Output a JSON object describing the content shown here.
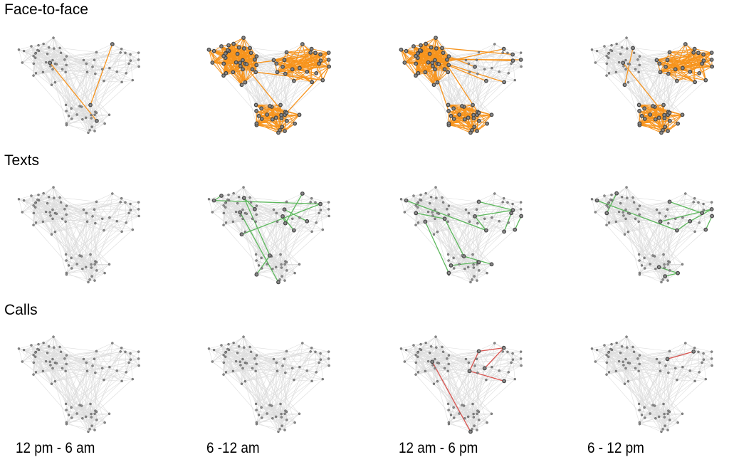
{
  "rows": [
    {
      "title": "Face-to-face",
      "edge_color": "#f7941d"
    },
    {
      "title": "Texts",
      "edge_color": "#5cb85c"
    },
    {
      "title": "Calls",
      "edge_color": "#d9534f"
    }
  ],
  "columns": [
    "12 pm  - 6 am",
    "6 -12 am",
    "12 am - 6 pm",
    "6 - 12 pm"
  ],
  "colors": {
    "background_edge": "#dddddd",
    "node": "#8a8a8a",
    "node_stroke": "#444444"
  },
  "panels": [
    [
      {
        "dense_clusters": [],
        "pairs": [
          [
            30,
            76
          ],
          [
            52,
            64
          ]
        ]
      },
      {
        "dense_clusters": [
          "A",
          "B",
          "C"
        ],
        "pairs": [
          [
            3,
            40
          ],
          [
            20,
            61
          ],
          [
            55,
            44
          ],
          [
            58,
            70
          ],
          [
            10,
            36
          ],
          [
            36,
            58
          ]
        ]
      },
      {
        "dense_clusters": [
          "A",
          "C"
        ],
        "pairs": [
          [
            5,
            40
          ],
          [
            12,
            45
          ],
          [
            20,
            50
          ],
          [
            28,
            56
          ],
          [
            33,
            60
          ],
          [
            1,
            38
          ],
          [
            8,
            47
          ],
          [
            25,
            54
          ],
          [
            62,
            30
          ]
        ]
      },
      {
        "dense_clusters": [
          "B",
          "C"
        ],
        "pairs": [
          [
            5,
            22
          ],
          [
            30,
            76
          ],
          [
            38,
            59
          ],
          [
            36,
            42
          ]
        ]
      }
    ],
    [
      {
        "dense_clusters": [],
        "pairs": []
      },
      {
        "dense_clusters": [],
        "pairs": [
          [
            0,
            14
          ],
          [
            14,
            40
          ],
          [
            40,
            22
          ],
          [
            45,
            50
          ],
          [
            50,
            55
          ],
          [
            55,
            52
          ],
          [
            28,
            33
          ],
          [
            33,
            67
          ],
          [
            67,
            72
          ],
          [
            48,
            57
          ],
          [
            30,
            78
          ]
        ]
      },
      {
        "dense_clusters": [],
        "pairs": [
          [
            36,
            58
          ],
          [
            14,
            45
          ],
          [
            45,
            50
          ],
          [
            50,
            54
          ],
          [
            54,
            49
          ],
          [
            42,
            47
          ],
          [
            26,
            29
          ],
          [
            29,
            66
          ],
          [
            66,
            82
          ],
          [
            70,
            81
          ],
          [
            31,
            80
          ]
        ]
      },
      {
        "dense_clusters": [],
        "pairs": [
          [
            36,
            58
          ],
          [
            14,
            45
          ],
          [
            45,
            48
          ],
          [
            48,
            56
          ],
          [
            56,
            53
          ],
          [
            42,
            49
          ],
          [
            23,
            26
          ],
          [
            69,
            75
          ],
          [
            75,
            83
          ]
        ]
      }
    ],
    [
      {
        "dense_clusters": [],
        "pairs": []
      },
      {
        "dense_clusters": [],
        "pairs": []
      },
      {
        "dense_clusters": [],
        "pairs": [
          [
            38,
            59
          ],
          [
            38,
            49
          ],
          [
            49,
            53
          ],
          [
            53,
            47
          ],
          [
            30,
            78
          ]
        ]
      },
      {
        "dense_clusters": [],
        "pairs": [
          [
            41,
            57
          ]
        ]
      }
    ]
  ]
}
